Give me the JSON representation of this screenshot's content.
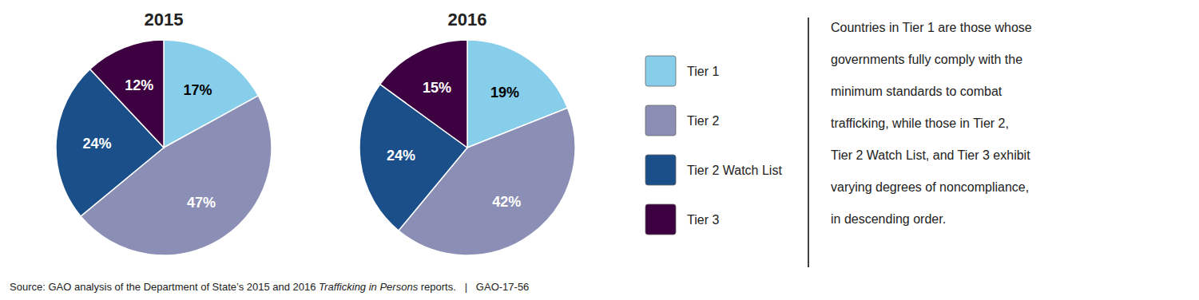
{
  "chart_data": [
    {
      "type": "pie",
      "title": "2015",
      "categories": [
        "Tier 1",
        "Tier 2",
        "Tier 2 Watch List",
        "Tier 3"
      ],
      "values": [
        17,
        47,
        24,
        12
      ],
      "value_labels": [
        "17%",
        "47%",
        "24%",
        "12%"
      ],
      "colors": [
        "#87CEEB",
        "#8B8FB5",
        "#1B4F8A",
        "#3D0040"
      ],
      "data_labels": true,
      "legend": "right"
    },
    {
      "type": "pie",
      "title": "2016",
      "categories": [
        "Tier 1",
        "Tier 2",
        "Tier 2 Watch List",
        "Tier 3"
      ],
      "values": [
        19,
        42,
        24,
        15
      ],
      "value_labels": [
        "19%",
        "42%",
        "24%",
        "15%"
      ],
      "colors": [
        "#87CEEB",
        "#8B8FB5",
        "#1B4F8A",
        "#3D0040"
      ],
      "data_labels": true
    }
  ],
  "annotation": "Countries in Tier 1 are those whose\ngovernments fully comply with the\nminimum standards to combat\ntrafficking, while those in Tier 2,\nTier 2 Watch List, and Tier 3 exhibit\nvarying degrees of noncompliance,\nin descending order.",
  "source": [
    "Source: GAO analysis of the Department of State’s 2015 and 2016 ",
    "Trafficking in Persons",
    " reports.   |   GAO-17-56"
  ]
}
